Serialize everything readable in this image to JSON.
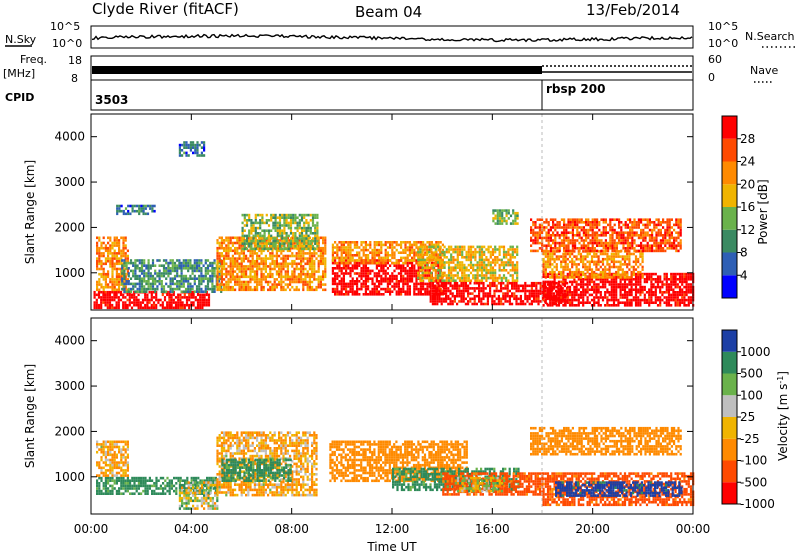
{
  "header": {
    "station": "Clyde River (fitACF)",
    "beam": "Beam 04",
    "date": "13/Feb/2014"
  },
  "top_panels": {
    "nsky": {
      "label": "N.Sky",
      "tick_top": "10^5",
      "tick_bottom": "10^0"
    },
    "nsearch": {
      "label": "N.Search",
      "tick_top": "10^5",
      "tick_bottom": "10^0"
    },
    "freq": {
      "label_line1": "Freq.",
      "label_line2": "[MHz]",
      "tick_top": "18",
      "tick_bottom": "8"
    },
    "nave": {
      "label": "Nave",
      "tick_top": "60",
      "tick_bottom": "0"
    },
    "cpid": {
      "label": "CPID",
      "segments": [
        {
          "label": "3503",
          "start_hour": 0
        },
        {
          "label": "rbsp 200",
          "start_hour": 18
        }
      ]
    }
  },
  "power_panel": {
    "ylabel": "Slant Range [km]",
    "yticks": [
      "1000",
      "2000",
      "3000",
      "4000"
    ],
    "colorbar_title": "Power [dB]",
    "colorbar_ticks": [
      "28",
      "24",
      "20",
      "16",
      "12",
      "8",
      "4"
    ]
  },
  "velocity_panel": {
    "ylabel": "Slant Range [km]",
    "yticks": [
      "1000",
      "2000",
      "3000",
      "4000"
    ],
    "colorbar_title": "Velocity  [m s",
    "colorbar_sup": "-1",
    "colorbar_close": "]",
    "colorbar_ticks": [
      "1000",
      "500",
      "100",
      "25",
      "-25",
      "-100",
      "-500",
      "-1000"
    ]
  },
  "x_axis": {
    "label": "Time UT",
    "ticks": [
      "00:00",
      "04:00",
      "08:00",
      "12:00",
      "16:00",
      "20:00",
      "00:00"
    ]
  },
  "chart_data": [
    {
      "type": "heatmap",
      "name": "power",
      "xlabel": "Time UT",
      "ylabel": "Slant Range [km]",
      "xlim_hours": [
        0,
        24
      ],
      "ylim_km": [
        180,
        4500
      ],
      "colorbar": {
        "label": "Power [dB]",
        "range": [
          0,
          30
        ],
        "levels": [
          2,
          6,
          10,
          14,
          18,
          22,
          26,
          30
        ],
        "colors": [
          "#0000ff",
          "#2e5fb5",
          "#3a8a62",
          "#6ab24b",
          "#f0b400",
          "#ff8a00",
          "#ff4a00",
          "#ff0000"
        ]
      },
      "regions": [
        {
          "t0": 0.1,
          "t1": 4.7,
          "r0": 200,
          "r1": 600,
          "value": 30
        },
        {
          "t0": 0.2,
          "t1": 1.5,
          "r0": 600,
          "r1": 1800,
          "value": 20
        },
        {
          "t0": 1.2,
          "t1": 5.2,
          "r0": 600,
          "r1": 1300,
          "value": 8
        },
        {
          "t0": 5.0,
          "t1": 9.3,
          "r0": 600,
          "r1": 1800,
          "value": 20
        },
        {
          "t0": 6.0,
          "t1": 9.0,
          "r0": 1500,
          "r1": 2300,
          "value": 12
        },
        {
          "t0": 9.6,
          "t1": 14.0,
          "r0": 500,
          "r1": 1300,
          "value": 30
        },
        {
          "t0": 9.6,
          "t1": 14.0,
          "r0": 1200,
          "r1": 1700,
          "value": 20
        },
        {
          "t0": 13.0,
          "t1": 17.0,
          "r0": 800,
          "r1": 1600,
          "value": 16
        },
        {
          "t0": 13.5,
          "t1": 19.0,
          "r0": 300,
          "r1": 800,
          "value": 30
        },
        {
          "t0": 18.0,
          "t1": 24.0,
          "r0": 300,
          "r1": 1000,
          "value": 30
        },
        {
          "t0": 18.0,
          "t1": 22.0,
          "r0": 900,
          "r1": 1500,
          "value": 20
        },
        {
          "t0": 17.5,
          "t1": 23.5,
          "r0": 1500,
          "r1": 2200,
          "value": 24
        },
        {
          "t0": 1.0,
          "t1": 2.5,
          "r0": 2300,
          "r1": 2500,
          "value": 6
        },
        {
          "t0": 3.5,
          "t1": 4.5,
          "r0": 3600,
          "r1": 3900,
          "value": 6
        },
        {
          "t0": 16.0,
          "t1": 17.0,
          "r0": 2100,
          "r1": 2400,
          "value": 12
        }
      ]
    },
    {
      "type": "heatmap",
      "name": "velocity",
      "xlabel": "Time UT",
      "ylabel": "Slant Range [km]",
      "xlim_hours": [
        0,
        24
      ],
      "ylim_km": [
        180,
        4500
      ],
      "colorbar": {
        "label": "Velocity [m s-1]",
        "levels": [
          -1000,
          -500,
          -100,
          -25,
          25,
          100,
          500,
          1000
        ],
        "colors": [
          "#ff0000",
          "#ff4a00",
          "#ff8a00",
          "#f0b400",
          "#bfbfbf",
          "#6ab24b",
          "#2e8a5a",
          "#1c3fa5"
        ]
      },
      "regions": [
        {
          "t0": 0.2,
          "t1": 5.0,
          "r0": 600,
          "r1": 1000,
          "value": 200
        },
        {
          "t0": 3.5,
          "t1": 5.0,
          "r0": 300,
          "r1": 900,
          "value": 0
        },
        {
          "t0": 0.2,
          "t1": 1.5,
          "r0": 1000,
          "r1": 1800,
          "value": -100
        },
        {
          "t0": 5.0,
          "t1": 9.0,
          "r0": 600,
          "r1": 2000,
          "value": -100
        },
        {
          "t0": 5.2,
          "t1": 8.0,
          "r0": 900,
          "r1": 1400,
          "value": 200
        },
        {
          "t0": 9.5,
          "t1": 15.0,
          "r0": 900,
          "r1": 1800,
          "value": -300
        },
        {
          "t0": 12.0,
          "t1": 17.0,
          "r0": 700,
          "r1": 1200,
          "value": 200
        },
        {
          "t0": 14.0,
          "t1": 18.0,
          "r0": 600,
          "r1": 1100,
          "value": -600
        },
        {
          "t0": 14.5,
          "t1": 16.5,
          "r0": 700,
          "r1": 1000,
          "value": 0
        },
        {
          "t0": 18.0,
          "t1": 24.0,
          "r0": 400,
          "r1": 1100,
          "value": -600
        },
        {
          "t0": 18.5,
          "t1": 23.5,
          "r0": 600,
          "r1": 900,
          "value": 600
        },
        {
          "t0": 17.5,
          "t1": 23.5,
          "r0": 1500,
          "r1": 2100,
          "value": -300
        }
      ]
    }
  ]
}
